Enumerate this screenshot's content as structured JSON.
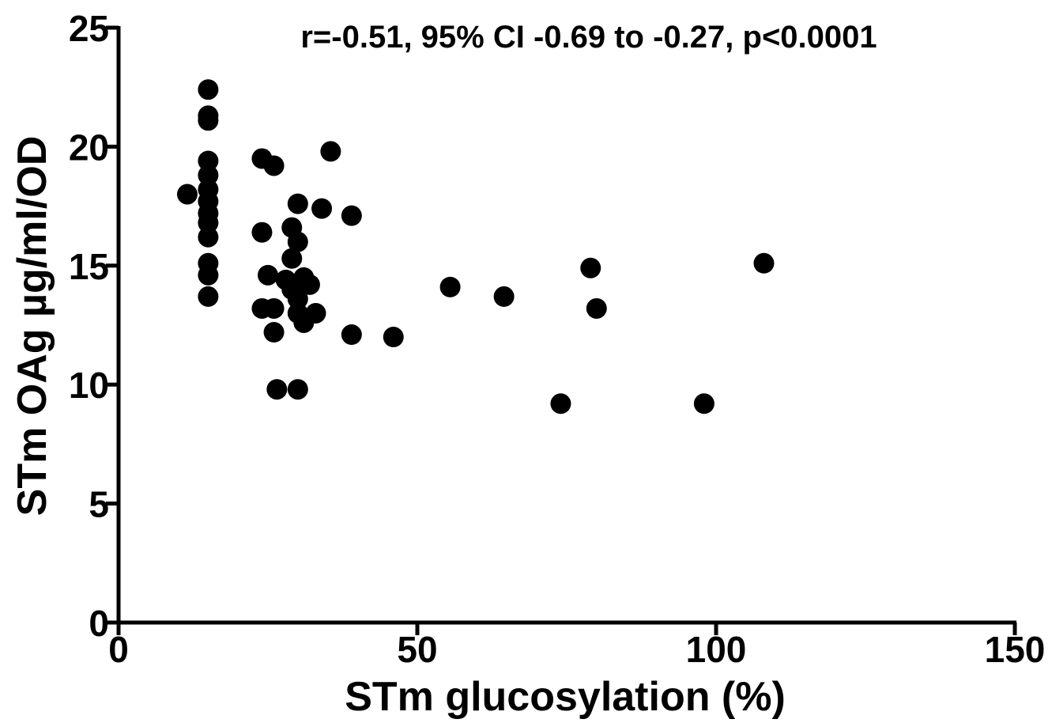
{
  "chart_data": {
    "type": "scatter",
    "title": "r=-0.51, 95% CI -0.69 to -0.27, p<0.0001",
    "xlabel": "STm glucosylation (%)",
    "ylabel": "STm OAg µg/ml/OD",
    "xlim": [
      0,
      150
    ],
    "ylim": [
      0,
      25
    ],
    "x_ticks": [
      0,
      50,
      100,
      150
    ],
    "y_ticks": [
      0,
      5,
      10,
      15,
      20,
      25
    ],
    "grid": false,
    "marker_color": "#000000",
    "points": [
      {
        "x": 15,
        "y": 22.4
      },
      {
        "x": 15,
        "y": 21.3
      },
      {
        "x": 15,
        "y": 21.1
      },
      {
        "x": 15,
        "y": 19.4
      },
      {
        "x": 15,
        "y": 18.8
      },
      {
        "x": 15,
        "y": 18.2
      },
      {
        "x": 15,
        "y": 17.7
      },
      {
        "x": 15,
        "y": 17.2
      },
      {
        "x": 15,
        "y": 16.8
      },
      {
        "x": 15,
        "y": 16.2
      },
      {
        "x": 15,
        "y": 15.1
      },
      {
        "x": 15,
        "y": 14.6
      },
      {
        "x": 15,
        "y": 13.7
      },
      {
        "x": 11.5,
        "y": 18.0
      },
      {
        "x": 24,
        "y": 19.5
      },
      {
        "x": 26,
        "y": 19.2
      },
      {
        "x": 35.5,
        "y": 19.8
      },
      {
        "x": 24,
        "y": 16.4
      },
      {
        "x": 25,
        "y": 14.6
      },
      {
        "x": 24,
        "y": 13.2
      },
      {
        "x": 26,
        "y": 13.2
      },
      {
        "x": 26,
        "y": 12.2
      },
      {
        "x": 30,
        "y": 17.6
      },
      {
        "x": 34,
        "y": 17.4
      },
      {
        "x": 39,
        "y": 17.1
      },
      {
        "x": 29,
        "y": 16.6
      },
      {
        "x": 30,
        "y": 16.0
      },
      {
        "x": 29,
        "y": 15.3
      },
      {
        "x": 28,
        "y": 14.4
      },
      {
        "x": 31,
        "y": 14.5
      },
      {
        "x": 32,
        "y": 14.2
      },
      {
        "x": 29,
        "y": 14.0
      },
      {
        "x": 30,
        "y": 13.6
      },
      {
        "x": 30,
        "y": 13.0
      },
      {
        "x": 33,
        "y": 13.0
      },
      {
        "x": 31,
        "y": 12.6
      },
      {
        "x": 39,
        "y": 12.1
      },
      {
        "x": 46,
        "y": 12.0
      },
      {
        "x": 26.5,
        "y": 9.8
      },
      {
        "x": 30,
        "y": 9.8
      },
      {
        "x": 55.5,
        "y": 14.1
      },
      {
        "x": 64.5,
        "y": 13.7
      },
      {
        "x": 79,
        "y": 14.9
      },
      {
        "x": 80,
        "y": 13.2
      },
      {
        "x": 108,
        "y": 15.1
      },
      {
        "x": 74,
        "y": 9.2
      },
      {
        "x": 98,
        "y": 9.2
      }
    ]
  }
}
